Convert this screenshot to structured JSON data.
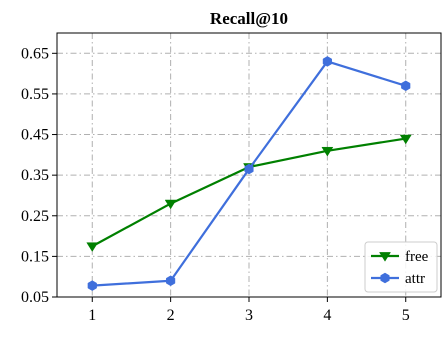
{
  "chart_data": {
    "type": "line",
    "title": "Recall@10",
    "xlabel": "",
    "ylabel": "",
    "x": [
      1,
      2,
      3,
      4,
      5
    ],
    "x_ticks": [
      "1",
      "2",
      "3",
      "4",
      "5"
    ],
    "y_ticks": [
      "0.05",
      "0.15",
      "0.25",
      "0.35",
      "0.45",
      "0.55",
      "0.65"
    ],
    "xlim": [
      0.55,
      5.45
    ],
    "ylim": [
      0.05,
      0.7
    ],
    "grid": true,
    "legend_position": "bottom-right",
    "series": [
      {
        "name": "free",
        "color": "#008000",
        "marker": "triangle-down",
        "values": [
          0.175,
          0.28,
          0.37,
          0.41,
          0.44
        ]
      },
      {
        "name": "attr",
        "color": "#3f6fdc",
        "marker": "hexagon",
        "values": [
          0.078,
          0.09,
          0.365,
          0.63,
          0.57
        ]
      }
    ]
  }
}
